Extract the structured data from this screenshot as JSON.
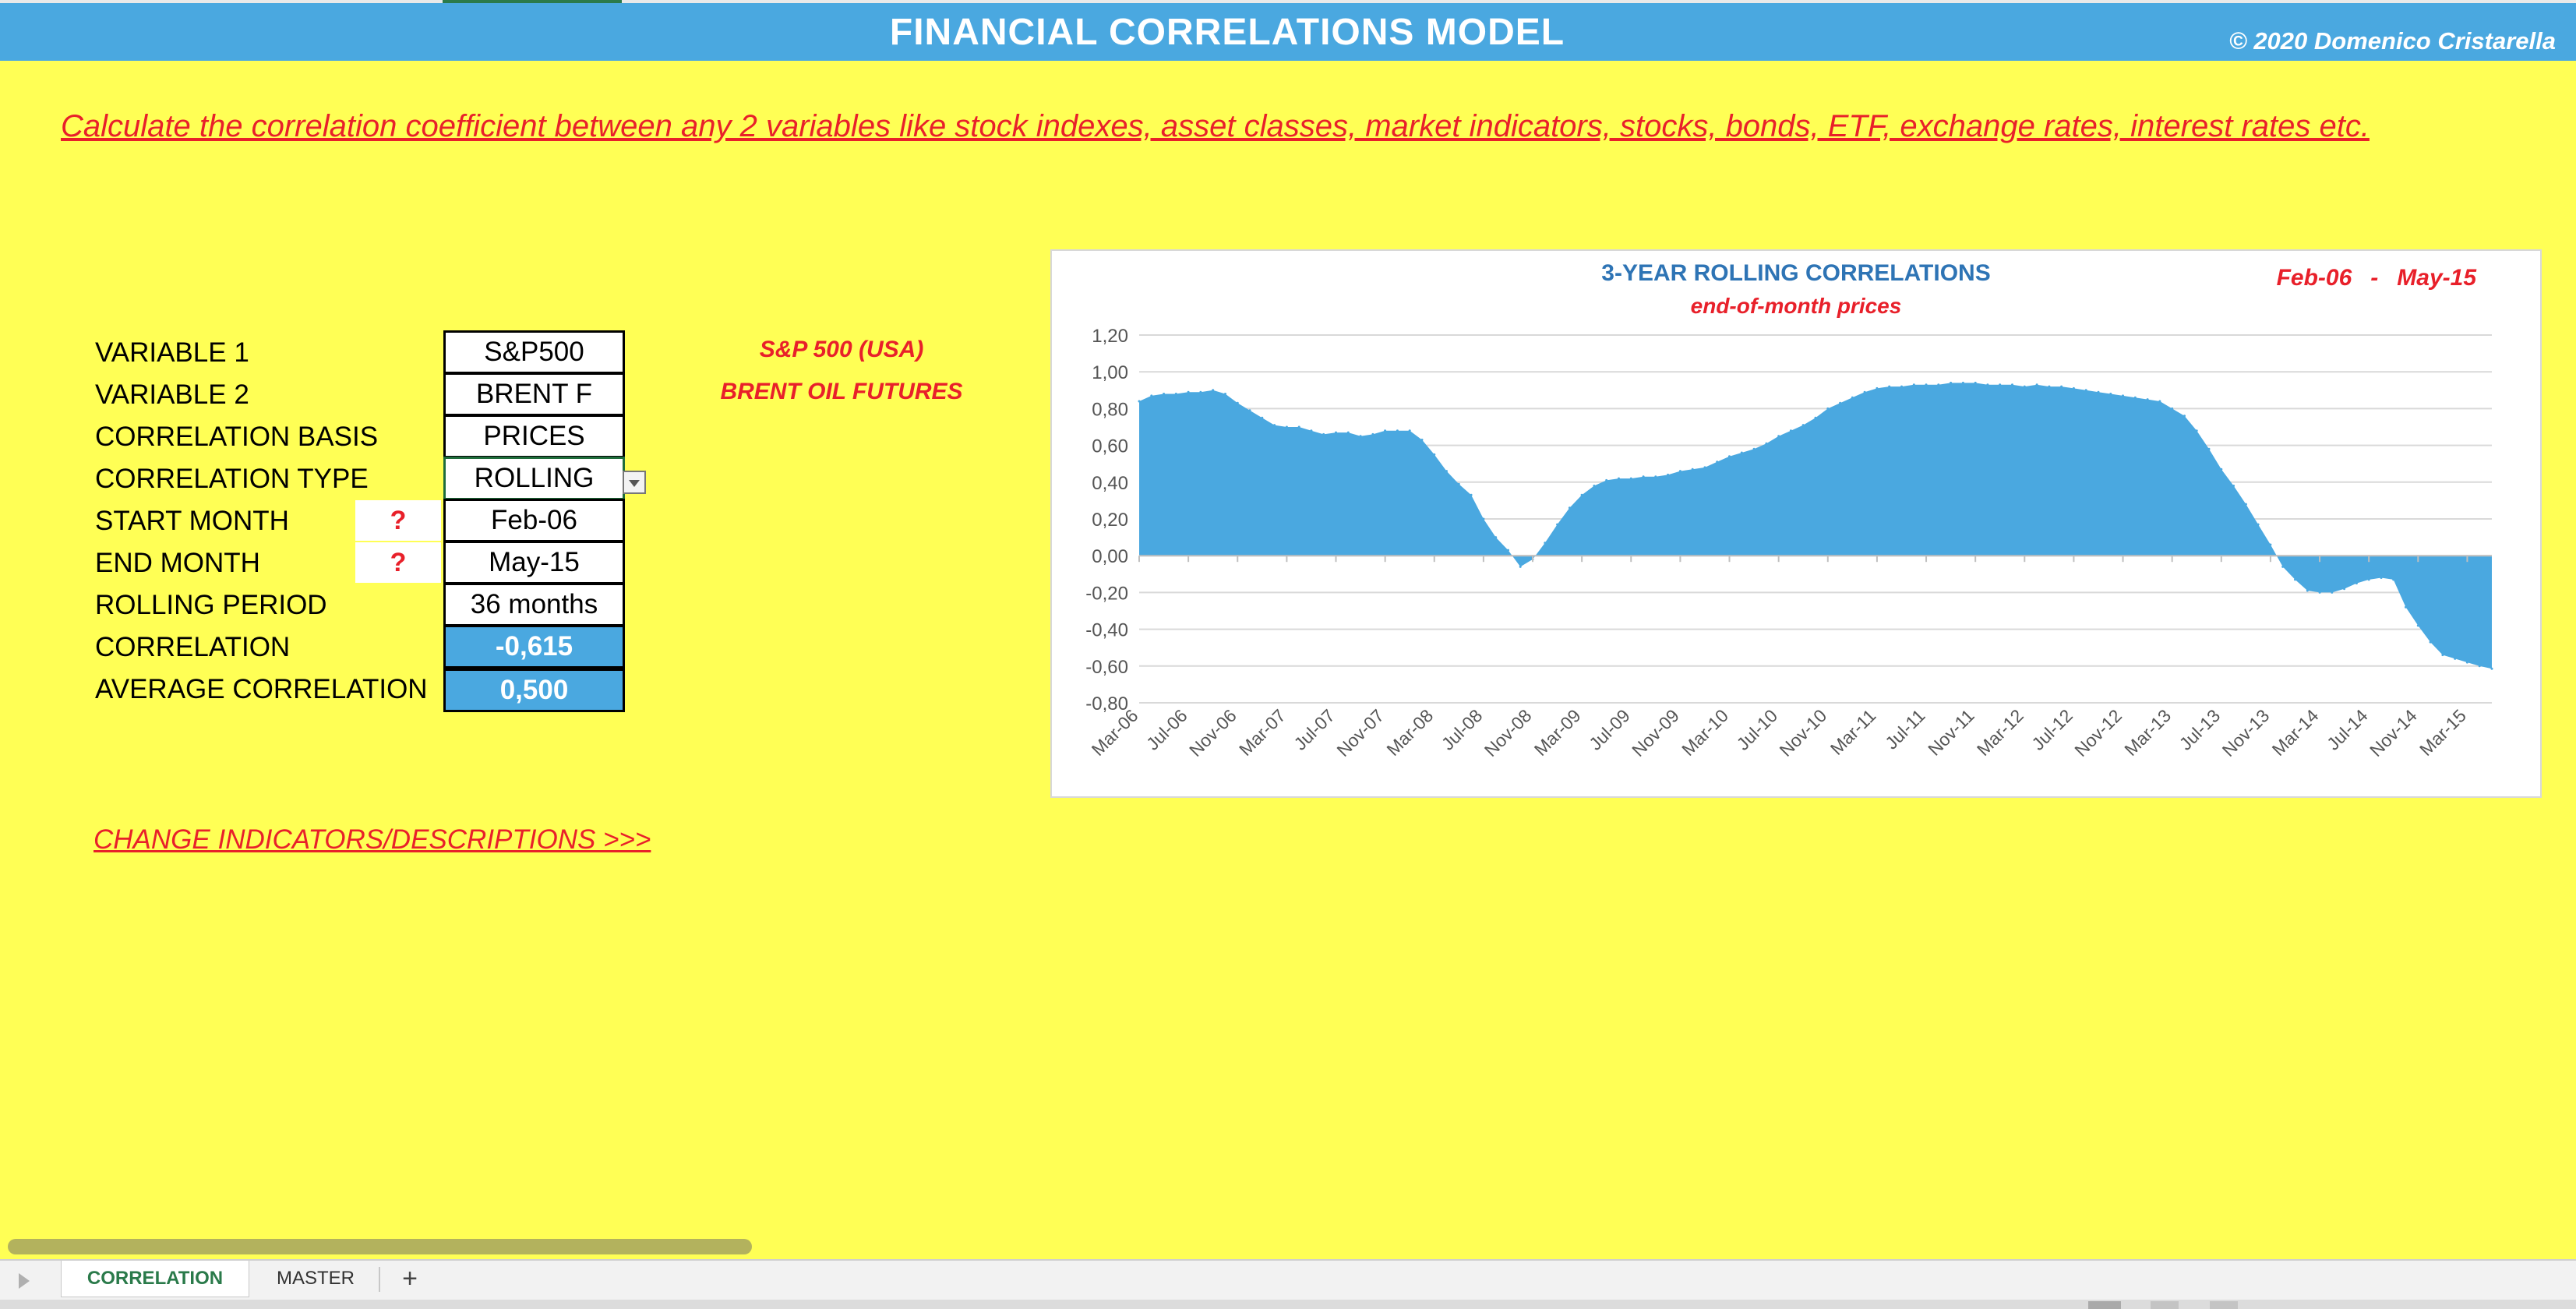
{
  "header": {
    "title": "FINANCIAL CORRELATIONS MODEL",
    "copyright": "© 2020 Domenico Cristarella"
  },
  "subtitle": "Calculate the correlation coefficient between any 2 variables like stock indexes, asset classes, market indicators, stocks, bonds, ETF, exchange rates, interest rates etc.",
  "params": {
    "variable1": {
      "label": "VARIABLE 1",
      "value": "S&P500",
      "description": "S&P 500 (USA)"
    },
    "variable2": {
      "label": "VARIABLE 2",
      "value": "BRENT F",
      "description": "BRENT OIL FUTURES"
    },
    "basis": {
      "label": "CORRELATION BASIS",
      "value": "PRICES"
    },
    "type": {
      "label": "CORRELATION TYPE",
      "value": "ROLLING"
    },
    "start": {
      "label": "START MONTH",
      "value": "Feb-06",
      "help": "?"
    },
    "end": {
      "label": "END MONTH",
      "value": "May-15",
      "help": "?"
    },
    "rolling": {
      "label": "ROLLING PERIOD",
      "value": "36 months"
    },
    "correlation": {
      "label": "CORRELATION",
      "value": "-0,615"
    },
    "average": {
      "label": "AVERAGE CORRELATION",
      "value": "0,500"
    }
  },
  "change_link": "CHANGE INDICATORS/DESCRIPTIONS >>>",
  "chart_header": {
    "from": "Feb-06",
    "sep": "-",
    "to": "May-15"
  },
  "tabs": [
    {
      "label": "CORRELATION",
      "active": true
    },
    {
      "label": "MASTER",
      "active": false
    }
  ],
  "tab_add": "+",
  "colors": {
    "background": "#ffff55",
    "banner": "#4aa8e0",
    "accent_red": "#e8202a",
    "area_fill": "#4aa8e0",
    "chart_title": "#2e74b5"
  },
  "chart_data": {
    "type": "area",
    "title": "3-YEAR ROLLING CORRELATIONS",
    "subtitle": "end-of-month prices",
    "ylim": [
      -0.8,
      1.2
    ],
    "yticks": [
      "1,20",
      "1,00",
      "0,80",
      "0,60",
      "0,40",
      "0,20",
      "0,00",
      "-0,20",
      "-0,40",
      "-0,60",
      "-0,80"
    ],
    "grid": true,
    "x": [
      "Mar-06",
      "Apr-06",
      "May-06",
      "Jun-06",
      "Jul-06",
      "Aug-06",
      "Sep-06",
      "Oct-06",
      "Nov-06",
      "Dec-06",
      "Jan-07",
      "Feb-07",
      "Mar-07",
      "Apr-07",
      "May-07",
      "Jun-07",
      "Jul-07",
      "Aug-07",
      "Sep-07",
      "Oct-07",
      "Nov-07",
      "Dec-07",
      "Jan-08",
      "Feb-08",
      "Mar-08",
      "Apr-08",
      "May-08",
      "Jun-08",
      "Jul-08",
      "Aug-08",
      "Sep-08",
      "Oct-08",
      "Nov-08",
      "Dec-08",
      "Jan-09",
      "Feb-09",
      "Mar-09",
      "Apr-09",
      "May-09",
      "Jun-09",
      "Jul-09",
      "Aug-09",
      "Sep-09",
      "Oct-09",
      "Nov-09",
      "Dec-09",
      "Jan-10",
      "Feb-10",
      "Mar-10",
      "Apr-10",
      "May-10",
      "Jun-10",
      "Jul-10",
      "Aug-10",
      "Sep-10",
      "Oct-10",
      "Nov-10",
      "Dec-10",
      "Jan-11",
      "Feb-11",
      "Mar-11",
      "Apr-11",
      "May-11",
      "Jun-11",
      "Jul-11",
      "Aug-11",
      "Sep-11",
      "Oct-11",
      "Nov-11",
      "Dec-11",
      "Jan-12",
      "Feb-12",
      "Mar-12",
      "Apr-12",
      "May-12",
      "Jun-12",
      "Jul-12",
      "Aug-12",
      "Sep-12",
      "Oct-12",
      "Nov-12",
      "Dec-12",
      "Jan-13",
      "Feb-13",
      "Mar-13",
      "Apr-13",
      "May-13",
      "Jun-13",
      "Jul-13",
      "Aug-13",
      "Sep-13",
      "Oct-13",
      "Nov-13",
      "Dec-13",
      "Jan-14",
      "Feb-14",
      "Mar-14",
      "Apr-14",
      "May-14",
      "Jun-14",
      "Jul-14",
      "Aug-14",
      "Sep-14",
      "Oct-14",
      "Nov-14",
      "Dec-14",
      "Jan-15",
      "Feb-15",
      "Mar-15",
      "Apr-15",
      "May-15"
    ],
    "xtick_labels": [
      "Mar-06",
      "Jul-06",
      "Nov-06",
      "Mar-07",
      "Jul-07",
      "Nov-07",
      "Mar-08",
      "Jul-08",
      "Nov-08",
      "Mar-09",
      "Jul-09",
      "Nov-09",
      "Mar-10",
      "Jul-10",
      "Nov-10",
      "Mar-11",
      "Jul-11",
      "Nov-11",
      "Mar-12",
      "Jul-12",
      "Nov-12",
      "Mar-13",
      "Jul-13",
      "Nov-13",
      "Mar-14",
      "Jul-14",
      "Nov-14",
      "Mar-15"
    ],
    "values": [
      0.84,
      0.87,
      0.88,
      0.88,
      0.89,
      0.89,
      0.9,
      0.88,
      0.83,
      0.79,
      0.75,
      0.71,
      0.7,
      0.7,
      0.68,
      0.66,
      0.67,
      0.67,
      0.65,
      0.66,
      0.68,
      0.68,
      0.68,
      0.63,
      0.55,
      0.46,
      0.39,
      0.33,
      0.2,
      0.1,
      0.03,
      -0.06,
      -0.02,
      0.07,
      0.17,
      0.26,
      0.33,
      0.38,
      0.41,
      0.42,
      0.42,
      0.43,
      0.43,
      0.44,
      0.46,
      0.47,
      0.48,
      0.51,
      0.54,
      0.56,
      0.58,
      0.61,
      0.65,
      0.68,
      0.71,
      0.75,
      0.8,
      0.83,
      0.86,
      0.89,
      0.91,
      0.92,
      0.92,
      0.93,
      0.93,
      0.93,
      0.94,
      0.94,
      0.94,
      0.93,
      0.93,
      0.93,
      0.92,
      0.93,
      0.92,
      0.92,
      0.91,
      0.9,
      0.89,
      0.88,
      0.87,
      0.86,
      0.85,
      0.84,
      0.8,
      0.76,
      0.68,
      0.58,
      0.47,
      0.38,
      0.28,
      0.17,
      0.06,
      -0.06,
      -0.13,
      -0.19,
      -0.2,
      -0.2,
      -0.18,
      -0.15,
      -0.13,
      -0.12,
      -0.13,
      -0.28,
      -0.38,
      -0.47,
      -0.54,
      -0.56,
      -0.58,
      -0.6,
      -0.615
    ]
  }
}
